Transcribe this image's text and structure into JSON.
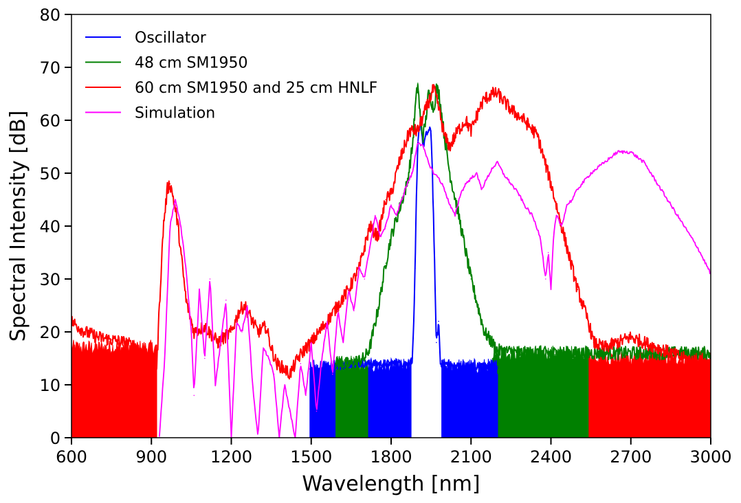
{
  "chart_data": {
    "type": "line",
    "title": "",
    "xlabel": "Wavelength [nm]",
    "ylabel": "Spectral Intensity [dB]",
    "xlim": [
      600,
      3000
    ],
    "ylim": [
      0,
      80
    ],
    "x_ticks": [
      600,
      900,
      1200,
      1500,
      1800,
      2100,
      2400,
      2700,
      3000
    ],
    "y_ticks": [
      0,
      10,
      20,
      30,
      40,
      50,
      60,
      70,
      80
    ],
    "x_tick_labels": [
      "600",
      "900",
      "1200",
      "1500",
      "1800",
      "2100",
      "2400",
      "2700",
      "3000"
    ],
    "y_tick_labels": [
      "0",
      "10",
      "20",
      "30",
      "40",
      "50",
      "60",
      "70",
      "80"
    ],
    "legend_position": "top-left",
    "grid": false,
    "series": [
      {
        "name": "Oscillator",
        "color": "#0000ff",
        "x": [
          1495,
          1520,
          1560,
          1600,
          1650,
          1700,
          1750,
          1800,
          1850,
          1870,
          1880,
          1885,
          1890,
          1895,
          1900,
          1905,
          1910,
          1915,
          1920,
          1930,
          1940,
          1950,
          1955,
          1960,
          1965,
          1970,
          1975,
          1978,
          1982,
          1985,
          1990,
          2000,
          2050,
          2100,
          2150,
          2200
        ],
        "y": [
          13,
          13,
          13.5,
          13.5,
          14,
          14,
          14,
          14,
          14,
          14,
          15,
          22,
          32,
          45,
          55,
          58,
          60,
          58,
          55,
          57,
          58,
          58,
          50,
          40,
          28,
          18,
          20,
          22,
          18,
          14,
          14,
          14,
          13.5,
          13.5,
          13.5,
          13.5
        ],
        "noise_floor_start": 1495,
        "noise_floor_end": 2200,
        "floor_level": 13.5
      },
      {
        "name": "48 cm SM1950",
        "color": "#008000",
        "x": [
          1590,
          1650,
          1700,
          1720,
          1750,
          1780,
          1800,
          1830,
          1860,
          1880,
          1890,
          1900,
          1910,
          1920,
          1930,
          1940,
          1950,
          1960,
          1970,
          1980,
          2000,
          2020,
          2050,
          2100,
          2150,
          2200,
          2300,
          2400,
          2500,
          2600,
          2700,
          2800,
          2900,
          3000
        ],
        "y": [
          14,
          14,
          15,
          17,
          24,
          33,
          38,
          43,
          48,
          55,
          62,
          67,
          60,
          57,
          60,
          65,
          64,
          62,
          66,
          65,
          57,
          50,
          43,
          30,
          20,
          16.5,
          16,
          16,
          16,
          16,
          16,
          16,
          16,
          16
        ],
        "noise_floor_start": 1590,
        "noise_floor_end": 2540,
        "floor_level": 15.5
      },
      {
        "name": "60 cm SM1950 and 25 cm HNLF",
        "color": "#ff0000",
        "x": [
          600,
          650,
          700,
          750,
          800,
          850,
          880,
          900,
          910,
          920,
          930,
          945,
          960,
          970,
          980,
          1000,
          1030,
          1060,
          1100,
          1150,
          1200,
          1230,
          1250,
          1280,
          1300,
          1330,
          1350,
          1370,
          1400,
          1420,
          1450,
          1480,
          1500,
          1530,
          1560,
          1600,
          1640,
          1680,
          1700,
          1720,
          1750,
          1780,
          1800,
          1830,
          1850,
          1870,
          1900,
          1930,
          1960,
          1980,
          2000,
          2020,
          2050,
          2080,
          2100,
          2130,
          2150,
          2180,
          2200,
          2250,
          2300,
          2350,
          2400,
          2450,
          2500,
          2540,
          2560,
          2600,
          2650,
          2700,
          2800,
          2900,
          3000
        ],
        "y": [
          22,
          20,
          19,
          18.5,
          18,
          17,
          15,
          13,
          12,
          13,
          25,
          40,
          47,
          48,
          46,
          40,
          26,
          20,
          21,
          18,
          20,
          24,
          25,
          22,
          20,
          21,
          17,
          14,
          13,
          12,
          15,
          17,
          18,
          20,
          22,
          25,
          28,
          32,
          36,
          40,
          38,
          45,
          46,
          52,
          55,
          58,
          58,
          62,
          66,
          62,
          57,
          55,
          58,
          60,
          58,
          62,
          64,
          65,
          65,
          62,
          60,
          57,
          48,
          38,
          28,
          22,
          18,
          17,
          18,
          19,
          17,
          15,
          14
        ],
        "noise_floor_start": 600,
        "noise_floor_end": 920,
        "noise_floor_start_2": 2540,
        "noise_floor_end_2": 3000,
        "floor_level": 15
      },
      {
        "name": "Simulation",
        "color": "#ff00ff",
        "x": [
          930,
          950,
          970,
          990,
          1010,
          1030,
          1050,
          1060,
          1080,
          1100,
          1120,
          1140,
          1160,
          1180,
          1200,
          1220,
          1240,
          1260,
          1280,
          1300,
          1320,
          1340,
          1360,
          1380,
          1400,
          1420,
          1440,
          1460,
          1480,
          1500,
          1520,
          1540,
          1560,
          1580,
          1600,
          1620,
          1640,
          1660,
          1680,
          1700,
          1720,
          1740,
          1760,
          1780,
          1800,
          1820,
          1840,
          1860,
          1880,
          1900,
          1920,
          1940,
          1960,
          1980,
          2000,
          2020,
          2040,
          2060,
          2080,
          2100,
          2120,
          2140,
          2160,
          2180,
          2200,
          2220,
          2250,
          2280,
          2300,
          2330,
          2360,
          2380,
          2390,
          2400,
          2410,
          2420,
          2440,
          2460,
          2480,
          2500,
          2550,
          2600,
          2650,
          2700,
          2750,
          2800,
          2850,
          2900,
          2950,
          3000
        ],
        "y": [
          0,
          15,
          40,
          45,
          40,
          32,
          20,
          8,
          28,
          15,
          30,
          10,
          18,
          26,
          0,
          22,
          20,
          25,
          10,
          0,
          17,
          15,
          12,
          0,
          10,
          5,
          0,
          14,
          8,
          18,
          5,
          15,
          22,
          12,
          24,
          18,
          28,
          24,
          32,
          30,
          36,
          42,
          38,
          40,
          44,
          42,
          45,
          48,
          50,
          56,
          55,
          52,
          50,
          49,
          47,
          44,
          42,
          46,
          48,
          49,
          50,
          47,
          49,
          51,
          52,
          50,
          48,
          46,
          44,
          42,
          38,
          30,
          35,
          28,
          38,
          42,
          40,
          44,
          45,
          47,
          50,
          52,
          54,
          54,
          52,
          48,
          44,
          40,
          36,
          31
        ]
      }
    ]
  }
}
